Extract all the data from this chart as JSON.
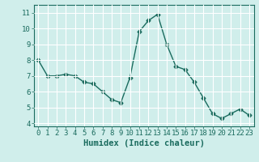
{
  "x": [
    0,
    1,
    2,
    3,
    4,
    5,
    6,
    7,
    8,
    9,
    10,
    11,
    12,
    13,
    14,
    15,
    16,
    17,
    18,
    19,
    20,
    21,
    22,
    23
  ],
  "y": [
    8.0,
    7.0,
    7.0,
    7.1,
    7.0,
    6.6,
    6.5,
    6.0,
    5.5,
    5.3,
    6.9,
    9.8,
    10.5,
    10.9,
    9.0,
    7.6,
    7.4,
    6.6,
    5.6,
    4.6,
    4.3,
    4.6,
    4.9,
    4.5
  ],
  "line_color": "#1a6b5e",
  "marker": "D",
  "marker_size": 2.5,
  "bg_color": "#d0eeeb",
  "grid_color": "#ffffff",
  "ylabel_ticks": [
    4,
    5,
    6,
    7,
    8,
    9,
    10,
    11
  ],
  "xlabel": "Humidex (Indice chaleur)",
  "ylim": [
    3.8,
    11.5
  ],
  "xlim": [
    -0.5,
    23.5
  ],
  "tick_color": "#1a6b5e",
  "label_color": "#1a6b5e",
  "xlabel_fontsize": 7.5,
  "tick_fontsize": 6.5
}
